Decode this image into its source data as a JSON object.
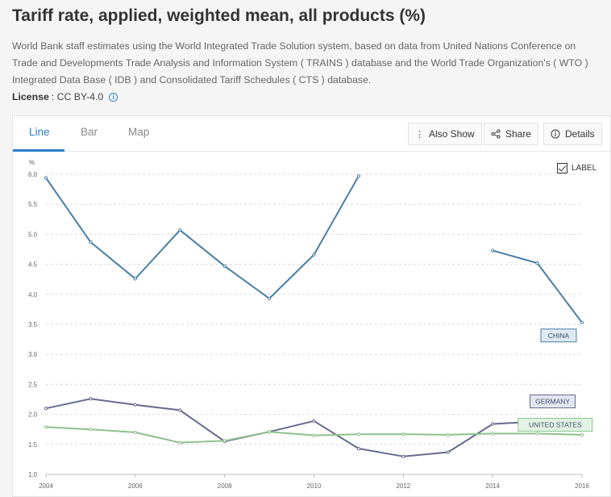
{
  "page": {
    "title": "Tariff rate, applied, weighted mean, all products (%)",
    "source": "World Bank staff estimates using the World Integrated Trade Solution system, based on data from United Nations Conference on Trade and Developments Trade Analysis and Information System ( TRAINS ) database and the World Trade Organization's ( WTO ) Integrated Data Base ( IDB ) and Consolidated Tariff Schedules ( CTS ) database.",
    "license_label": "License",
    "license_value": ": CC BY-4.0"
  },
  "tabs": [
    "Line",
    "Bar",
    "Map"
  ],
  "toolbar": {
    "also_show": "Also Show",
    "share": "Share",
    "details": "Details"
  },
  "label_toggle": "LABEL",
  "colors": {
    "china": "#4a7ea6",
    "germany": "#656b8c",
    "united_states": "#8fbf8f",
    "accent": "#2a7fc9"
  },
  "chart_data": {
    "type": "line",
    "ylabel": "%",
    "ylim": [
      1.0,
      6.0
    ],
    "yticks": [
      "1.0",
      "1.5",
      "2.0",
      "2.5",
      "3.0",
      "3.5",
      "4.0",
      "4.5",
      "5.0",
      "5.5",
      "6.0"
    ],
    "xlim": [
      2004,
      2016
    ],
    "xticks": [
      "2004",
      "2006",
      "2008",
      "2010",
      "2012",
      "2014",
      "2016"
    ],
    "grid": "horizontal dashed",
    "series": [
      {
        "name": "CHINA",
        "color": "#4a7ea6",
        "label_fill": "#dde9f3",
        "points": [
          [
            2004,
            5.94
          ],
          [
            2005,
            4.87
          ],
          [
            2006,
            4.26
          ],
          [
            2007,
            5.07
          ],
          [
            2008,
            4.47
          ],
          [
            2009,
            3.93
          ],
          [
            2010,
            4.66
          ],
          [
            2011,
            5.97
          ],
          [
            2014,
            4.73
          ],
          [
            2015,
            4.52
          ],
          [
            2016,
            3.53
          ]
        ]
      },
      {
        "name": "GERMANY",
        "color": "#656b8c",
        "label_fill": "#e4e5ee",
        "points": [
          [
            2004,
            2.1
          ],
          [
            2005,
            2.26
          ],
          [
            2006,
            2.16
          ],
          [
            2007,
            2.07
          ],
          [
            2008,
            1.55
          ],
          [
            2009,
            1.71
          ],
          [
            2010,
            1.89
          ],
          [
            2011,
            1.43
          ],
          [
            2012,
            1.3
          ],
          [
            2013,
            1.37
          ],
          [
            2014,
            1.84
          ],
          [
            2015,
            1.88
          ]
        ]
      },
      {
        "name": "UNITED STATES",
        "color": "#8fbf8f",
        "label_fill": "#e3f3e3",
        "points": [
          [
            2004,
            1.79
          ],
          [
            2005,
            1.75
          ],
          [
            2006,
            1.7
          ],
          [
            2007,
            1.53
          ],
          [
            2008,
            1.56
          ],
          [
            2009,
            1.71
          ],
          [
            2010,
            1.65
          ],
          [
            2011,
            1.67
          ],
          [
            2012,
            1.67
          ],
          [
            2013,
            1.66
          ],
          [
            2014,
            1.68
          ],
          [
            2015,
            1.68
          ],
          [
            2016,
            1.66
          ]
        ]
      }
    ]
  }
}
